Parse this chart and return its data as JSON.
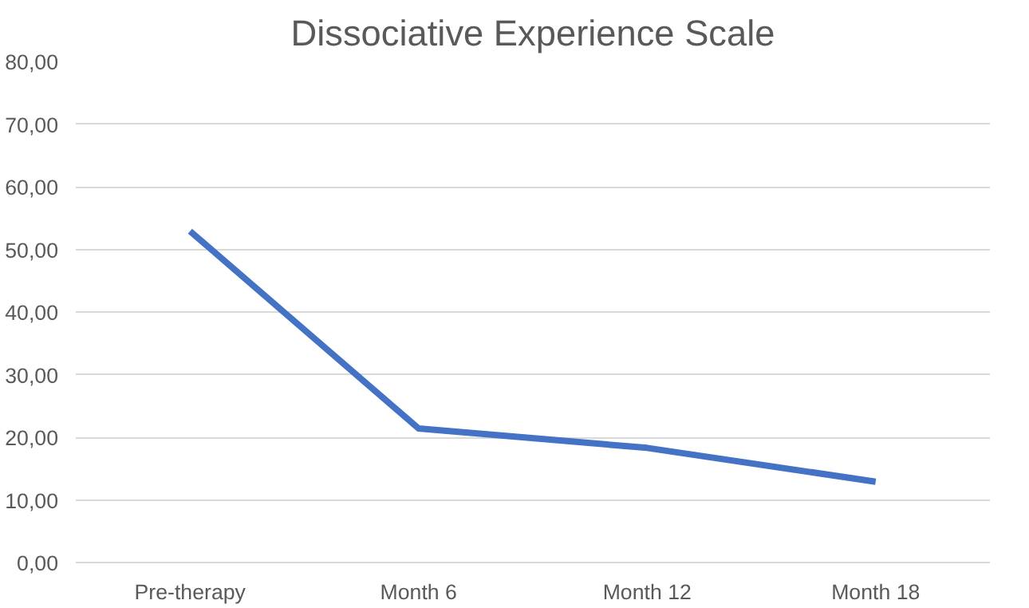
{
  "chart_data": {
    "type": "line",
    "title": "Dissociative Experience Scale",
    "categories": [
      "Pre-therapy",
      "Month 6",
      "Month 12",
      "Month 18"
    ],
    "series": [
      {
        "color": "#4472c4",
        "values": [
          52.9,
          21.4,
          18.3,
          12.9
        ]
      }
    ],
    "ylim": [
      0,
      80
    ],
    "yticks": [
      {
        "value": 0,
        "label": "0,00"
      },
      {
        "value": 10,
        "label": "10,00"
      },
      {
        "value": 20,
        "label": "20,00"
      },
      {
        "value": 30,
        "label": "30,00"
      },
      {
        "value": 40,
        "label": "40,00"
      },
      {
        "value": 50,
        "label": "50,00"
      },
      {
        "value": 60,
        "label": "60,00"
      },
      {
        "value": 70,
        "label": "70,00"
      },
      {
        "value": 80,
        "label": "80,00"
      }
    ],
    "grid": "y",
    "marker": "none",
    "line_style": "solid"
  }
}
